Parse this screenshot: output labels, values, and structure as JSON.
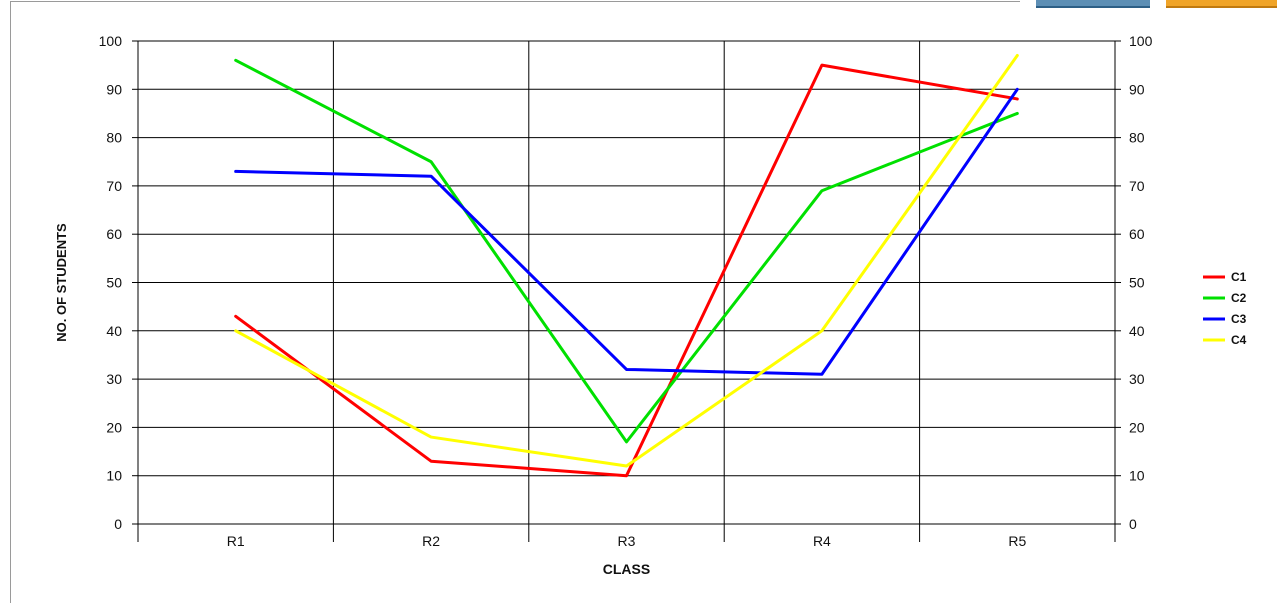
{
  "chart_data": {
    "type": "line",
    "title": "",
    "xlabel": "CLASS",
    "ylabel": "NO. OF STUDENTS",
    "categories": [
      "R1",
      "R2",
      "R3",
      "R4",
      "R5"
    ],
    "ylim": [
      0,
      100
    ],
    "yticks": [
      0,
      10,
      20,
      30,
      40,
      50,
      60,
      70,
      80,
      90,
      100
    ],
    "secondary_y_axis": true,
    "grid": true,
    "legend_position": "right",
    "series": [
      {
        "name": "C1",
        "color": "#ff0000",
        "values": [
          43,
          13,
          10,
          95,
          88
        ]
      },
      {
        "name": "C2",
        "color": "#00e000",
        "values": [
          96,
          75,
          17,
          69,
          85
        ]
      },
      {
        "name": "C3",
        "color": "#0000ff",
        "values": [
          73,
          72,
          32,
          31,
          90
        ]
      },
      {
        "name": "C4",
        "color": "#ffff00",
        "values": [
          40,
          18,
          12,
          40,
          97
        ]
      }
    ]
  }
}
